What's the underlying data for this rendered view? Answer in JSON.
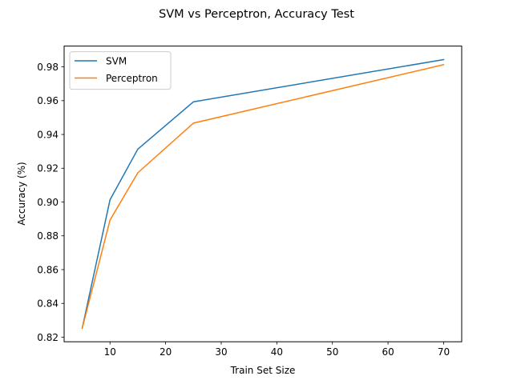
{
  "chart_data": {
    "type": "line",
    "title": "SVM vs Perceptron, Accuracy Test",
    "xlabel": "Train Set Size",
    "ylabel": "Accuracy (%)",
    "x": [
      5,
      10,
      15,
      25,
      70
    ],
    "series": [
      {
        "name": "SVM",
        "color": "#1f77b4",
        "values": [
          0.8253,
          0.9013,
          0.9313,
          0.9593,
          0.9843
        ]
      },
      {
        "name": "Perceptron",
        "color": "#ff7f0e",
        "values": [
          0.8253,
          0.8893,
          0.9173,
          0.9467,
          0.9813
        ]
      }
    ],
    "xlim": [
      1.75,
      73.25
    ],
    "ylim": [
      0.8173,
      0.9923
    ],
    "xticks": [
      10,
      20,
      30,
      40,
      50,
      60,
      70
    ],
    "xtick_labels": [
      "10",
      "20",
      "30",
      "40",
      "50",
      "60",
      "70"
    ],
    "yticks": [
      0.82,
      0.84,
      0.86,
      0.88,
      0.9,
      0.92,
      0.94,
      0.96,
      0.98
    ],
    "ytick_labels": [
      "0.82",
      "0.84",
      "0.86",
      "0.88",
      "0.90",
      "0.92",
      "0.94",
      "0.96",
      "0.98"
    ],
    "grid": false,
    "legend_position": "upper left"
  }
}
